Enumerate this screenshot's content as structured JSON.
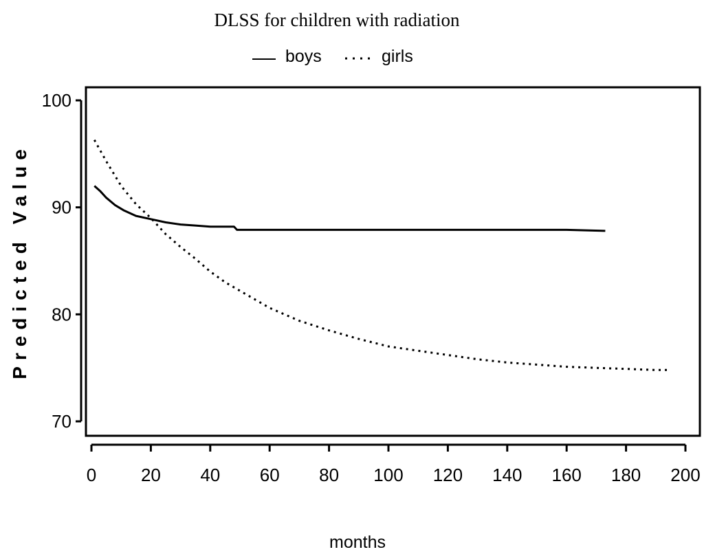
{
  "chart_data": {
    "type": "line",
    "title": "DLSS for children with radiation",
    "xlabel": "months",
    "ylabel": "Predicted Value",
    "xlim": [
      0,
      200
    ],
    "ylim": [
      70,
      100
    ],
    "xticks": [
      0,
      20,
      40,
      60,
      80,
      100,
      120,
      140,
      160,
      180,
      200
    ],
    "yticks": [
      70,
      80,
      90,
      100
    ],
    "grid": false,
    "legend_position": "top-center",
    "series": [
      {
        "name": "boys",
        "style": "solid",
        "color": "#000000",
        "x": [
          1,
          3,
          5,
          8,
          11,
          15,
          20,
          25,
          30,
          35,
          40,
          48,
          49,
          60,
          80,
          100,
          120,
          140,
          160,
          173
        ],
        "y": [
          92,
          91.5,
          90.9,
          90.2,
          89.7,
          89.2,
          88.9,
          88.6,
          88.4,
          88.3,
          88.2,
          88.2,
          87.9,
          87.9,
          87.9,
          87.9,
          87.9,
          87.9,
          87.9,
          87.8
        ]
      },
      {
        "name": "girls",
        "style": "dotted",
        "color": "#000000",
        "x": [
          1,
          5,
          10,
          15,
          20,
          25,
          30,
          35,
          40,
          45,
          50,
          60,
          70,
          80,
          90,
          100,
          110,
          120,
          130,
          140,
          150,
          160,
          170,
          180,
          190,
          195
        ],
        "y": [
          96.3,
          94.3,
          92,
          90.3,
          89,
          87.5,
          86.3,
          85.2,
          84,
          83,
          82.2,
          80.6,
          79.4,
          78.5,
          77.7,
          77,
          76.6,
          76.2,
          75.8,
          75.5,
          75.3,
          75.1,
          75,
          74.9,
          74.8,
          74.8
        ]
      }
    ]
  }
}
